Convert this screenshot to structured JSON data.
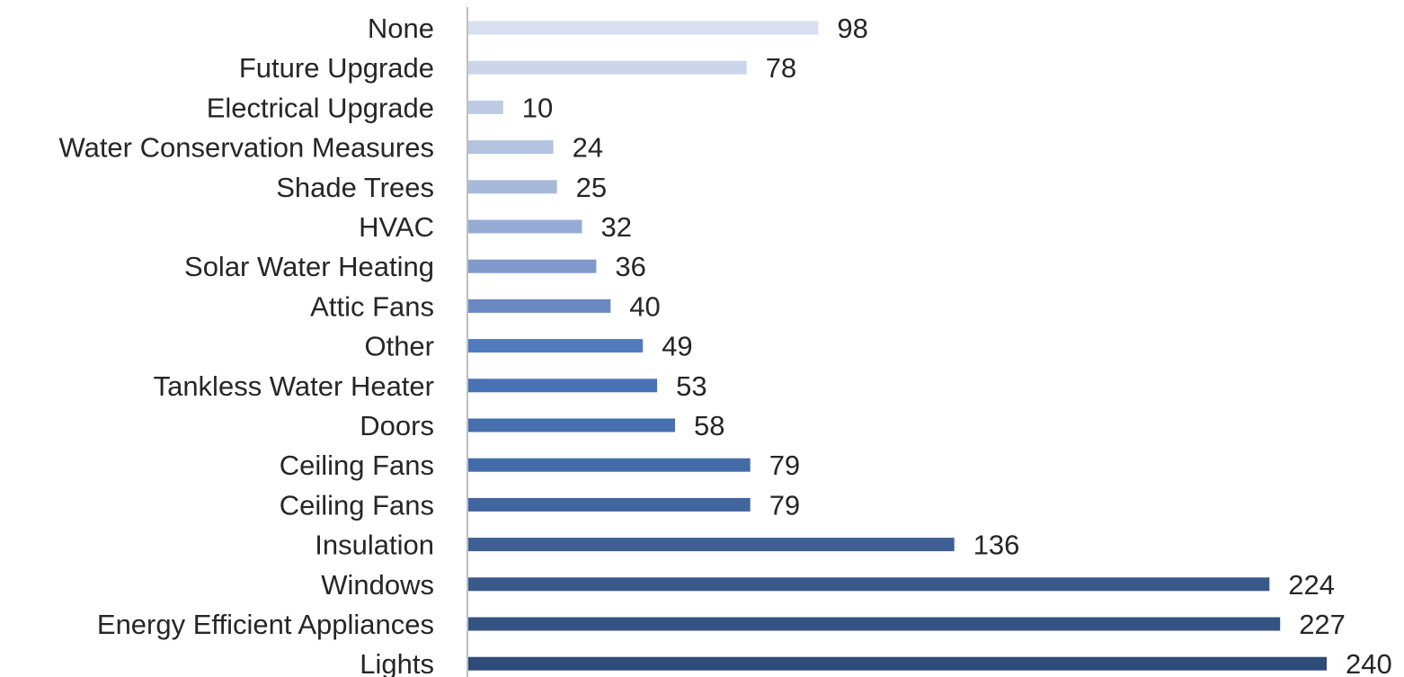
{
  "chart_data": {
    "type": "bar",
    "orientation": "horizontal",
    "title": "",
    "xlabel": "",
    "ylabel": "",
    "categories": [
      "None",
      "Future Upgrade",
      "Electrical Upgrade",
      "Water Conservation Measures",
      "Shade Trees",
      "HVAC",
      "Solar Water Heating",
      "Attic Fans",
      "Other",
      "Tankless Water Heater",
      "Doors",
      "Ceiling Fans",
      "Ceiling Fans",
      "Insulation",
      "Windows",
      "Energy Efficient Appliances",
      "Lights"
    ],
    "values": [
      98,
      78,
      10,
      24,
      25,
      32,
      36,
      40,
      49,
      53,
      58,
      79,
      79,
      136,
      224,
      227,
      240
    ],
    "data_labels": [
      "98",
      "78",
      "10",
      "24",
      "25",
      "32",
      "36",
      "40",
      "49",
      "53",
      "58",
      "79",
      "79",
      "136",
      "224",
      "227",
      "240"
    ],
    "xlim": [
      0,
      240
    ],
    "grid": false,
    "legend": "none",
    "bar_colors": [
      "#d9dfee",
      "#ccd6ea",
      "#bfcbe4",
      "#b3c2df",
      "#a7b8da",
      "#97acd4",
      "#7e99ca",
      "#6a89c2",
      "#4f7abe",
      "#4873b4",
      "#456fad",
      "#436ba7",
      "#41669f",
      "#3e6094",
      "#38598a",
      "#345383",
      "#2f4b77"
    ],
    "axis_color": "#bfbfbf"
  }
}
